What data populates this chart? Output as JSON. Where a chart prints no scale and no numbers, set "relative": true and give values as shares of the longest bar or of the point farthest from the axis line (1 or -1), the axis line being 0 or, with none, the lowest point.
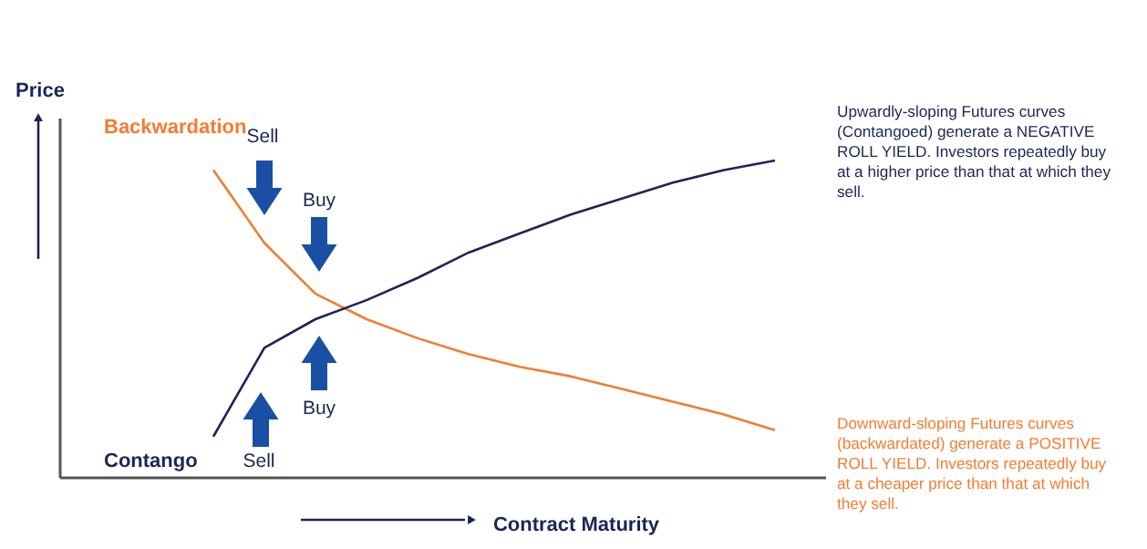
{
  "chart_data": {
    "type": "line",
    "relative": true,
    "xlabel": "Contract Maturity",
    "ylabel": "Price",
    "categories": [
      null,
      null,
      null,
      null,
      null,
      null,
      null,
      null,
      null,
      null,
      null,
      null,
      null,
      null,
      null,
      null
    ],
    "series": [
      {
        "name": "Backwardation",
        "color": "#f47c30",
        "values": [
          null,
          null,
          null,
          0.97,
          0.74,
          0.58,
          0.5,
          0.44,
          0.39,
          0.35,
          0.32,
          0.28,
          0.24,
          0.2,
          0.15,
          null
        ]
      },
      {
        "name": "Contango",
        "color": "#1b2556",
        "values": [
          null,
          null,
          null,
          0.13,
          0.41,
          0.5,
          0.56,
          0.63,
          0.71,
          0.77,
          0.83,
          0.88,
          0.93,
          0.97,
          1.0,
          null
        ]
      }
    ],
    "annotations": [
      "Sell",
      "Buy",
      "Buy",
      "Sell",
      "Upwardly-sloping Futures curves\n(Contangoed) generate a NEGATIVE\nROLL YIELD. Investors repeatedly buy\nat a higher price than that at which they\nsell.",
      "Downward-sloping Futures curves\n(backwardated) generate a POSITIVE\nROLL YIELD.  Investors repeatedly buy\nat a cheaper price than that at which\nthey sell."
    ],
    "legend": false
  }
}
